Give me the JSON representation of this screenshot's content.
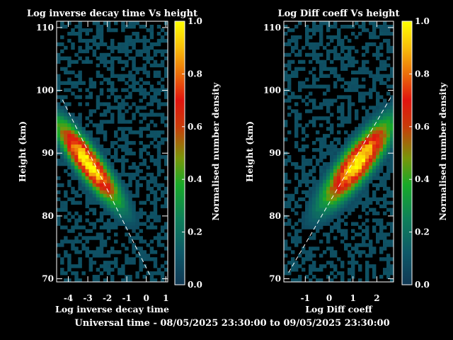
{
  "caption": "Universal time - 08/05/2025 23:30:00 to 09/05/2025 23:30:00",
  "colorbar_label": "Normalised number density",
  "colorbar_ticks": [
    "0.0",
    "0.2",
    "0.4",
    "0.6",
    "0.8",
    "1.0"
  ],
  "chart_data": [
    {
      "type": "heatmap",
      "title": "Log inverse decay time Vs height",
      "xlabel": "Log inverse decay time",
      "ylabel": "Height (km)",
      "xlim": [
        -4.6,
        1.1
      ],
      "ylim": [
        69.5,
        111
      ],
      "xticks": [
        "-4",
        "-3",
        "-2",
        "-1",
        "0",
        "1"
      ],
      "yticks": [
        "70",
        "80",
        "90",
        "100",
        "110"
      ],
      "colorbar": {
        "range": [
          0,
          1
        ],
        "label": "Normalised number density"
      },
      "density_peak": {
        "x": -3.0,
        "y": 88.5,
        "value": 1.0
      },
      "density_ridge_slope": -4.6,
      "fit_line": {
        "x": [
          -4.3,
          0.2
        ],
        "y": [
          98.5,
          70.5
        ]
      }
    },
    {
      "type": "heatmap",
      "title": "Log Diff coeff Vs height",
      "xlabel": "Log Diff coeff",
      "ylabel": "Height (km)",
      "xlim": [
        -1.9,
        2.7
      ],
      "ylim": [
        69.5,
        111
      ],
      "xticks": [
        "-1",
        "0",
        "1",
        "2"
      ],
      "yticks": [
        "70",
        "80",
        "90",
        "100",
        "110"
      ],
      "colorbar": {
        "range": [
          0,
          1
        ],
        "label": "Normalised number density"
      },
      "density_peak": {
        "x": 1.2,
        "y": 88.5,
        "value": 1.0
      },
      "density_ridge_slope": 5.5,
      "fit_line": {
        "x": [
          -1.7,
          2.6
        ],
        "y": [
          71,
          99
        ]
      }
    }
  ]
}
